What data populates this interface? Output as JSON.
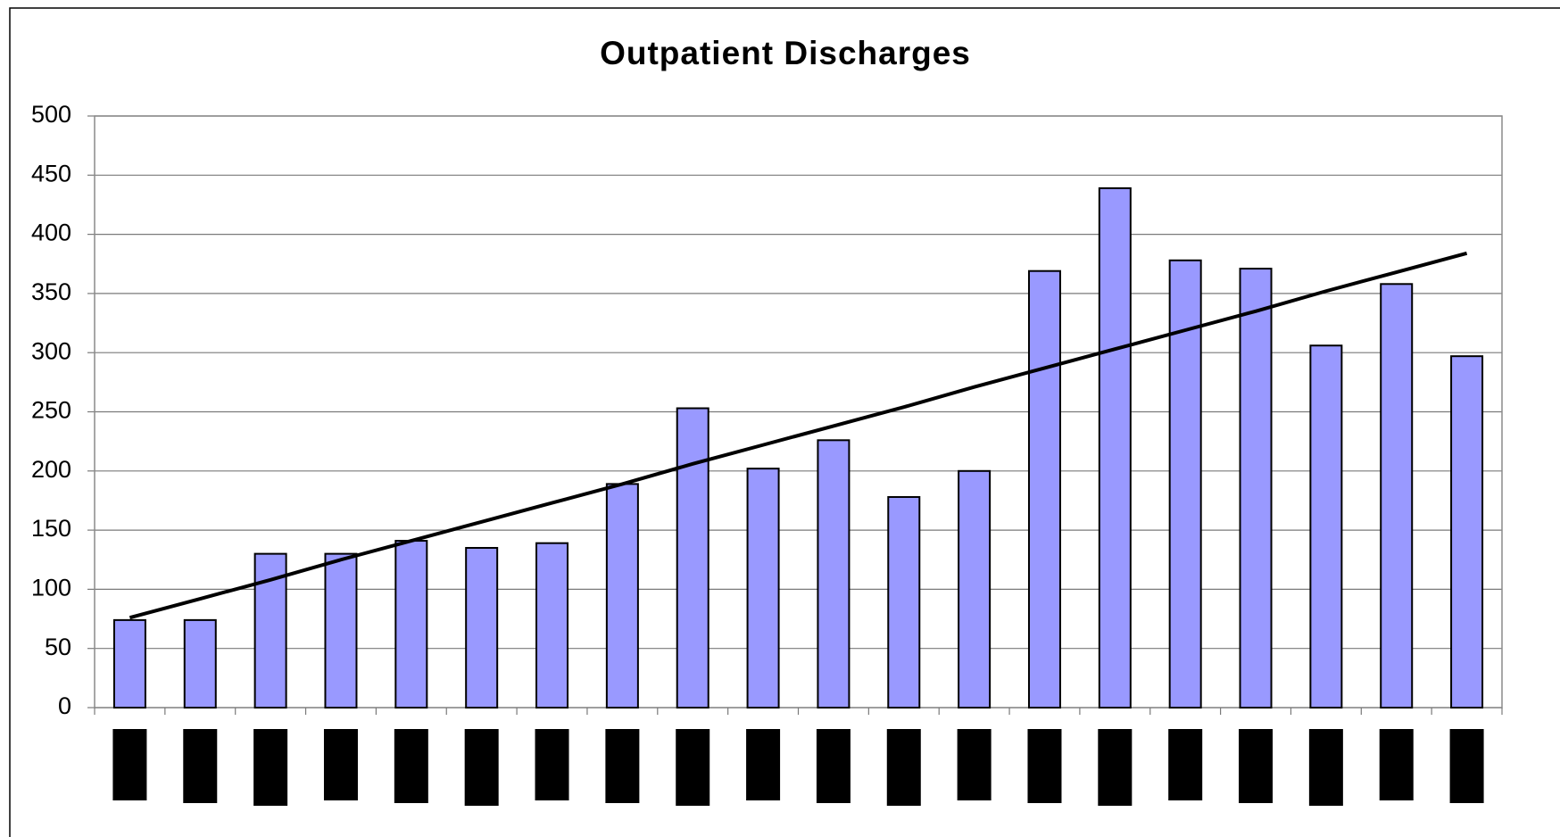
{
  "chart_data": {
    "type": "bar",
    "title": "Outpatient Discharges",
    "categories": [
      null,
      null,
      null,
      null,
      null,
      null,
      null,
      null,
      null,
      null,
      null,
      null,
      null,
      null,
      null,
      null,
      null,
      null,
      null,
      null
    ],
    "series": [
      {
        "type": "bar",
        "color": "#9999ff",
        "values": [
          74,
          74,
          130,
          130,
          141,
          135,
          139,
          189,
          253,
          202,
          226,
          178,
          200,
          369,
          439,
          378,
          371,
          306,
          358,
          297
        ]
      },
      {
        "type": "line",
        "color": "#000000",
        "values": [
          76,
          92,
          108,
          125,
          141,
          157,
          173,
          189,
          206,
          222,
          238,
          254,
          271,
          287,
          303,
          319,
          335,
          352,
          368,
          384
        ]
      }
    ],
    "ylim": [
      0,
      500
    ],
    "yticks": [
      0,
      50,
      100,
      150,
      200,
      250,
      300,
      350,
      400,
      450,
      500
    ],
    "grid": true
  }
}
